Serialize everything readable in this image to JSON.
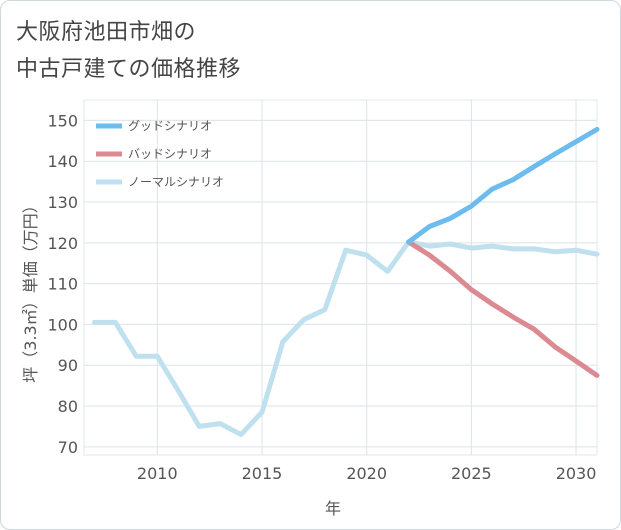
{
  "title_line1": "大阪府池田市畑の",
  "title_line2": "中古戸建ての価格推移",
  "chart_data": {
    "type": "line",
    "xlabel": "年",
    "ylabel": "坪（3.3㎡）単価（万円）",
    "xlim": [
      2006.5,
      2031
    ],
    "ylim": [
      68,
      155
    ],
    "x_ticks": [
      2010,
      2015,
      2020,
      2025,
      2030
    ],
    "y_ticks": [
      70,
      80,
      90,
      100,
      110,
      120,
      130,
      140,
      150
    ],
    "grid": true,
    "legend_position": "top-left",
    "series": [
      {
        "name": "グッドシナリオ",
        "color": "#6dbcf0",
        "x": [
          2022,
          2023,
          2024,
          2025,
          2026,
          2027,
          2028,
          2029,
          2030,
          2031
        ],
        "values": [
          120.2,
          124.0,
          126.0,
          129.0,
          133.2,
          135.5,
          138.7,
          141.8,
          144.8,
          147.8
        ]
      },
      {
        "name": "バッドシナリオ",
        "color": "#dc8a92",
        "x": [
          2022,
          2023,
          2024,
          2025,
          2026,
          2027,
          2028,
          2029,
          2030,
          2031
        ],
        "values": [
          120.2,
          117.0,
          113.0,
          108.5,
          105.0,
          101.8,
          98.8,
          94.5,
          91.0,
          87.5
        ]
      },
      {
        "name": "ノーマルシナリオ",
        "color": "#bfe0ee",
        "x": [
          2007,
          2008,
          2009,
          2010,
          2011,
          2012,
          2013,
          2014,
          2015,
          2016,
          2017,
          2018,
          2019,
          2020,
          2021,
          2022,
          2023,
          2024,
          2025,
          2026,
          2027,
          2028,
          2029,
          2030,
          2031
        ],
        "values": [
          100.5,
          100.5,
          92.2,
          92.2,
          83.8,
          75.0,
          75.7,
          73.0,
          78.5,
          95.8,
          101.2,
          103.6,
          118.2,
          117.0,
          113.0,
          120.2,
          119.2,
          119.7,
          118.7,
          119.2,
          118.5,
          118.5,
          117.8,
          118.2,
          117.2
        ]
      }
    ]
  }
}
